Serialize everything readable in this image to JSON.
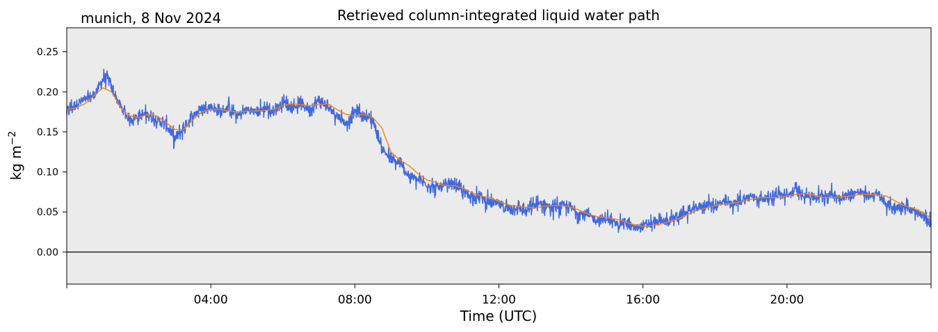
{
  "header": {
    "location_date": "munich, 8 Nov 2024"
  },
  "chart_data": {
    "type": "line",
    "title": "Retrieved column-integrated liquid water path",
    "xlabel": "Time (UTC)",
    "ylabel_main": "kg m",
    "ylabel_sup": "−2",
    "xlim": [
      0,
      24
    ],
    "ylim": [
      -0.04,
      0.28
    ],
    "x_ticks": [
      0,
      4,
      8,
      12,
      16,
      20,
      24
    ],
    "x_tick_labels": [
      "",
      "04:00",
      "08:00",
      "12:00",
      "16:00",
      "20:00",
      ""
    ],
    "y_ticks": [
      0.0,
      0.05,
      0.1,
      0.15,
      0.2,
      0.25
    ],
    "y_tick_labels": [
      "0.00",
      "0.05",
      "0.10",
      "0.15",
      "0.20",
      "0.25"
    ],
    "reference_line_y": 0.0,
    "background_color": "#ebebeb",
    "series": [
      {
        "role": "raw retrieval",
        "color": "#4169e1",
        "x": [
          0.0,
          0.25,
          0.5,
          0.75,
          1.0,
          1.1,
          1.25,
          1.5,
          1.75,
          2.0,
          2.25,
          2.5,
          2.75,
          3.0,
          3.25,
          3.5,
          3.75,
          4.0,
          4.25,
          4.5,
          4.75,
          5.0,
          5.25,
          5.5,
          5.75,
          6.0,
          6.25,
          6.5,
          6.75,
          7.0,
          7.25,
          7.5,
          7.75,
          8.0,
          8.25,
          8.5,
          8.75,
          9.0,
          9.25,
          9.5,
          9.75,
          10.0,
          10.25,
          10.5,
          10.75,
          11.0,
          11.25,
          11.5,
          11.75,
          12.0,
          12.25,
          12.5,
          12.75,
          13.0,
          13.25,
          13.5,
          13.75,
          14.0,
          14.25,
          14.5,
          14.75,
          15.0,
          15.25,
          15.5,
          15.75,
          16.0,
          16.25,
          16.5,
          16.75,
          17.0,
          17.25,
          17.5,
          17.75,
          18.0,
          18.25,
          18.5,
          18.75,
          19.0,
          19.25,
          19.5,
          19.75,
          20.0,
          20.25,
          20.5,
          20.75,
          21.0,
          21.25,
          21.5,
          21.75,
          22.0,
          22.25,
          22.5,
          22.75,
          23.0,
          23.25,
          23.5,
          23.75,
          24.0
        ],
        "y": [
          0.175,
          0.185,
          0.19,
          0.195,
          0.215,
          0.22,
          0.205,
          0.18,
          0.165,
          0.17,
          0.172,
          0.165,
          0.16,
          0.14,
          0.155,
          0.17,
          0.18,
          0.182,
          0.175,
          0.18,
          0.17,
          0.178,
          0.175,
          0.18,
          0.175,
          0.188,
          0.18,
          0.185,
          0.178,
          0.19,
          0.18,
          0.172,
          0.16,
          0.175,
          0.17,
          0.165,
          0.13,
          0.115,
          0.11,
          0.095,
          0.09,
          0.085,
          0.08,
          0.082,
          0.085,
          0.075,
          0.07,
          0.068,
          0.062,
          0.06,
          0.055,
          0.056,
          0.05,
          0.058,
          0.06,
          0.055,
          0.058,
          0.055,
          0.048,
          0.045,
          0.04,
          0.042,
          0.035,
          0.038,
          0.03,
          0.032,
          0.036,
          0.038,
          0.04,
          0.045,
          0.05,
          0.055,
          0.06,
          0.058,
          0.062,
          0.06,
          0.065,
          0.07,
          0.066,
          0.068,
          0.072,
          0.07,
          0.078,
          0.072,
          0.068,
          0.07,
          0.072,
          0.068,
          0.072,
          0.075,
          0.07,
          0.072,
          0.06,
          0.055,
          0.058,
          0.05,
          0.045,
          0.035
        ]
      },
      {
        "role": "smoothed",
        "color": "#ff7f0e",
        "x": [
          0.0,
          0.25,
          0.5,
          0.75,
          1.0,
          1.25,
          1.5,
          1.75,
          2.0,
          2.25,
          2.5,
          2.75,
          3.0,
          3.25,
          3.5,
          3.75,
          4.0,
          4.25,
          4.5,
          4.75,
          5.0,
          5.25,
          5.5,
          5.75,
          6.0,
          6.25,
          6.5,
          6.75,
          7.0,
          7.25,
          7.5,
          7.75,
          8.0,
          8.25,
          8.5,
          8.75,
          9.0,
          9.25,
          9.5,
          9.75,
          10.0,
          10.25,
          10.5,
          10.75,
          11.0,
          11.25,
          11.5,
          11.75,
          12.0,
          12.25,
          12.5,
          12.75,
          13.0,
          13.25,
          13.5,
          13.75,
          14.0,
          14.25,
          14.5,
          14.75,
          15.0,
          15.25,
          15.5,
          15.75,
          16.0,
          16.25,
          16.5,
          16.75,
          17.0,
          17.25,
          17.5,
          17.75,
          18.0,
          18.25,
          18.5,
          18.75,
          19.0,
          19.25,
          19.5,
          19.75,
          20.0,
          20.25,
          20.5,
          20.75,
          21.0,
          21.25,
          21.5,
          21.75,
          22.0,
          22.25,
          22.5,
          22.75,
          23.0,
          23.25,
          23.5,
          23.75,
          24.0
        ],
        "y": [
          0.178,
          0.18,
          0.185,
          0.195,
          0.205,
          0.2,
          0.18,
          0.17,
          0.168,
          0.172,
          0.17,
          0.162,
          0.153,
          0.153,
          0.165,
          0.175,
          0.178,
          0.178,
          0.176,
          0.175,
          0.176,
          0.176,
          0.177,
          0.178,
          0.183,
          0.185,
          0.184,
          0.183,
          0.184,
          0.185,
          0.178,
          0.172,
          0.17,
          0.172,
          0.168,
          0.155,
          0.125,
          0.115,
          0.108,
          0.098,
          0.09,
          0.087,
          0.083,
          0.083,
          0.08,
          0.074,
          0.07,
          0.068,
          0.063,
          0.059,
          0.057,
          0.056,
          0.055,
          0.057,
          0.058,
          0.058,
          0.056,
          0.052,
          0.047,
          0.044,
          0.043,
          0.041,
          0.038,
          0.034,
          0.032,
          0.033,
          0.035,
          0.038,
          0.042,
          0.047,
          0.052,
          0.055,
          0.058,
          0.06,
          0.061,
          0.063,
          0.066,
          0.068,
          0.068,
          0.068,
          0.07,
          0.072,
          0.073,
          0.071,
          0.068,
          0.068,
          0.069,
          0.07,
          0.072,
          0.072,
          0.071,
          0.07,
          0.064,
          0.058,
          0.055,
          0.05,
          0.042
        ]
      }
    ]
  }
}
